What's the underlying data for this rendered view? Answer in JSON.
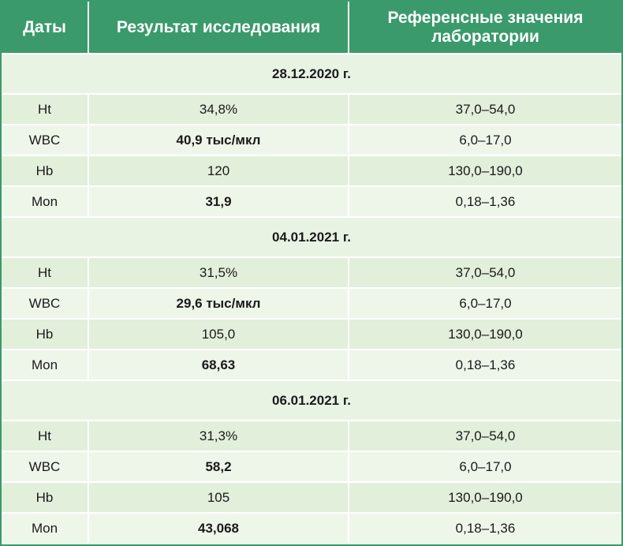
{
  "header": {
    "col_dates": "Даты",
    "col_result": "Результат исследования",
    "col_reference": "Референсные значения лаборатории"
  },
  "groups": [
    {
      "date": "28.12.2020 г.",
      "rows": [
        {
          "name": "Ht",
          "result": "34,8%",
          "result_bold": false,
          "reference": "37,0–54,0"
        },
        {
          "name": "WBC",
          "result": "40,9 тыс/мкл",
          "result_bold": true,
          "reference": "6,0–17,0"
        },
        {
          "name": "Hb",
          "result": "120",
          "result_bold": false,
          "reference": "130,0–190,0"
        },
        {
          "name": "Mon",
          "result": "31,9",
          "result_bold": true,
          "reference": "0,18–1,36"
        }
      ]
    },
    {
      "date": "04.01.2021 г.",
      "rows": [
        {
          "name": "Ht",
          "result": "31,5%",
          "result_bold": false,
          "reference": "37,0–54,0"
        },
        {
          "name": "WBC",
          "result": "29,6 тыс/мкл",
          "result_bold": true,
          "reference": "6,0–17,0"
        },
        {
          "name": "Hb",
          "result": "105,0",
          "result_bold": false,
          "reference": "130,0–190,0"
        },
        {
          "name": "Mon",
          "result": "68,63",
          "result_bold": true,
          "reference": "0,18–1,36"
        }
      ]
    },
    {
      "date": "06.01.2021 г.",
      "rows": [
        {
          "name": "Ht",
          "result": "31,3%",
          "result_bold": false,
          "reference": "37,0–54,0"
        },
        {
          "name": "WBC",
          "result": "58,2",
          "result_bold": true,
          "reference": "6,0–17,0"
        },
        {
          "name": "Hb",
          "result": "105",
          "result_bold": false,
          "reference": "130,0–190,0"
        },
        {
          "name": "Mon",
          "result": "43,068",
          "result_bold": true,
          "reference": "0,18–1,36"
        }
      ]
    }
  ],
  "colors": {
    "header_bg": "#3a9a6b",
    "row_bg": "#e9f3e4"
  }
}
